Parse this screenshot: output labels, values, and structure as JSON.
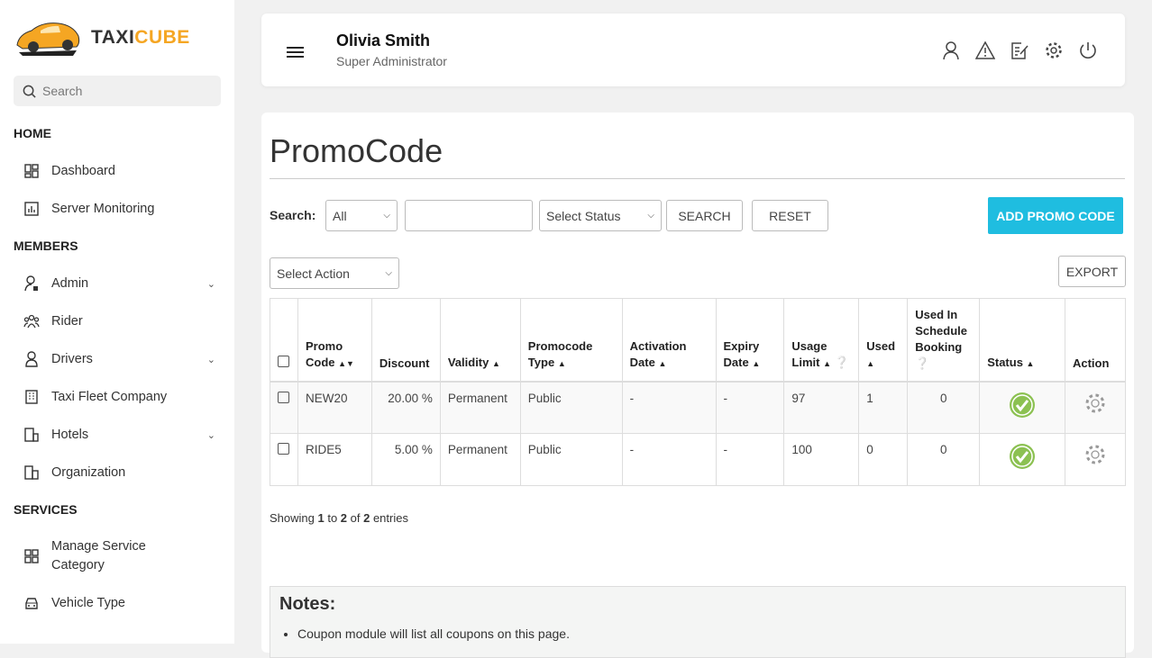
{
  "brand": {
    "part1": "TAXI",
    "part2": "CUBE"
  },
  "sidebar": {
    "search_placeholder": "Search",
    "sections": [
      "HOME",
      "MEMBERS",
      "SERVICES"
    ],
    "items": [
      {
        "label": "Dashboard",
        "icon": "dashboard-icon"
      },
      {
        "label": "Server Monitoring",
        "icon": "chart-icon"
      },
      {
        "label": "Admin",
        "icon": "user-lock-icon",
        "expand": true
      },
      {
        "label": "Rider",
        "icon": "users-icon"
      },
      {
        "label": "Drivers",
        "icon": "driver-icon",
        "expand": true
      },
      {
        "label": "Taxi Fleet Company",
        "icon": "building-icon"
      },
      {
        "label": "Hotels",
        "icon": "hotel-icon",
        "expand": true
      },
      {
        "label": "Organization",
        "icon": "organization-icon"
      },
      {
        "label": "Manage Service Category",
        "icon": "grid-icon"
      },
      {
        "label": "Vehicle Type",
        "icon": "car-icon"
      }
    ]
  },
  "header": {
    "name": "Olivia Smith",
    "role": "Super Administrator",
    "icons": [
      "user-icon",
      "warning-icon",
      "edit-icon",
      "settings-icon",
      "power-icon"
    ]
  },
  "main": {
    "title": "PromoCode",
    "search_label": "Search:",
    "filter_select": "All",
    "search_value": "",
    "status_select": "Select Status",
    "search_btn": "SEARCH",
    "reset_btn": "RESET",
    "add_btn": "ADD PROMO CODE",
    "action_select": "Select Action",
    "export_btn": "EXPORT",
    "accent": "#1fbde0",
    "columns": [
      "Promo Code",
      "Discount",
      "Validity",
      "Promocode Type",
      "Activation Date",
      "Expiry Date",
      "Usage Limit",
      "Used",
      "Used In Schedule Booking",
      "Status",
      "Action"
    ],
    "rows": [
      {
        "code": "NEW20",
        "discount": "20.00 %",
        "validity": "Permanent",
        "type": "Public",
        "activation": "-",
        "expiry": "-",
        "limit": "97",
        "used": "1",
        "sched": "0",
        "status": "active"
      },
      {
        "code": "RIDE5",
        "discount": "5.00 %",
        "validity": "Permanent",
        "type": "Public",
        "activation": "-",
        "expiry": "-",
        "limit": "100",
        "used": "0",
        "sched": "0",
        "status": "active"
      }
    ],
    "info": {
      "pre": "Showing ",
      "from": "1",
      "mid1": " to ",
      "to": "2",
      "mid2": " of ",
      "total": "2",
      "post": " entries"
    },
    "notes_title": "Notes:",
    "notes": [
      "Coupon module will list all coupons on this page."
    ]
  }
}
